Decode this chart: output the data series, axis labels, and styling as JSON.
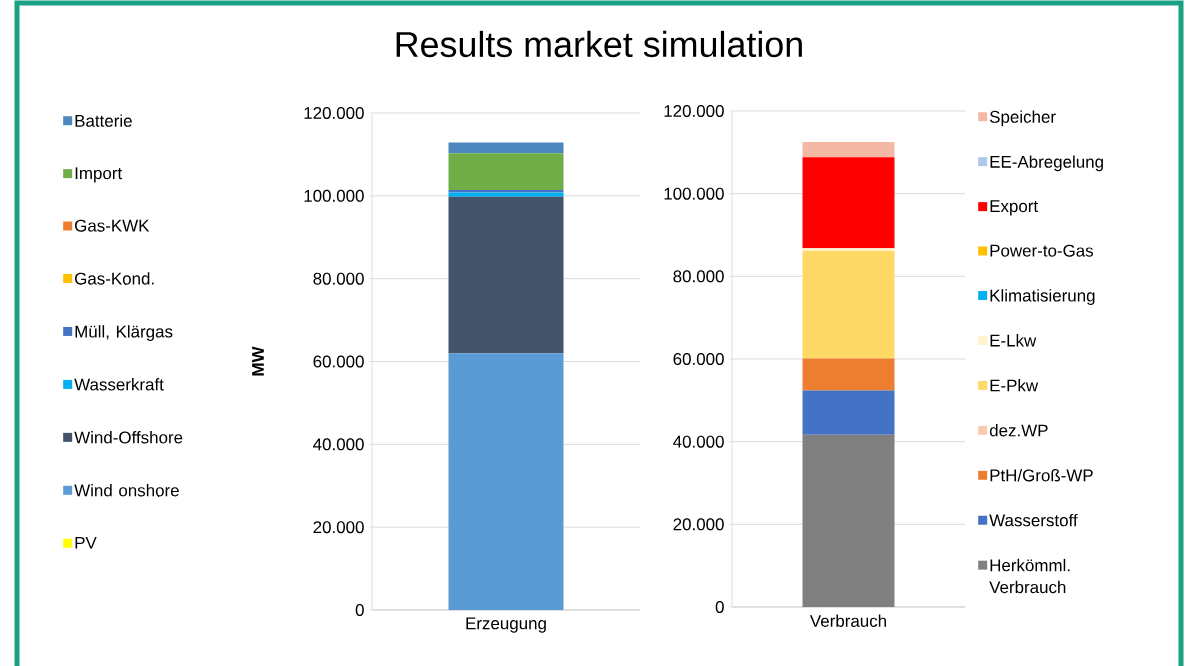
{
  "chart_data": [
    {
      "type": "bar",
      "stacked": true,
      "title": "Results market simulation",
      "ylabel": "MW",
      "categories": [
        "Erzeugung"
      ],
      "series": [
        {
          "name": "PV",
          "color": "#ffff00",
          "values": [
            0
          ]
        },
        {
          "name": "Wind onshore",
          "color": "#5b9bd5",
          "values": [
            62000
          ]
        },
        {
          "name": "Wind-Offshore",
          "color": "#44546a",
          "values": [
            37800
          ]
        },
        {
          "name": "Wasserkraft",
          "color": "#00b0f0",
          "values": [
            1000
          ]
        },
        {
          "name": "Müll, Klärgas",
          "color": "#4472c4",
          "values": [
            600
          ]
        },
        {
          "name": "Gas-Kond.",
          "color": "#ffc000",
          "values": [
            0
          ]
        },
        {
          "name": "Gas-KWK",
          "color": "#ed7d31",
          "values": [
            0
          ]
        },
        {
          "name": "Import",
          "color": "#70ad47",
          "values": [
            8900
          ]
        },
        {
          "name": "Batterie",
          "color": "#4e86be",
          "values": [
            2600
          ]
        }
      ],
      "ylim": [
        0,
        120000
      ],
      "yticks": [
        0,
        {
          "value": 20000,
          "label": "20.000"
        },
        {
          "value": 40000,
          "label": "40.000"
        },
        {
          "value": 60000,
          "label": "60.000"
        },
        {
          "value": 80000,
          "label": "80.000"
        },
        {
          "value": 100000,
          "label": "100.000"
        },
        {
          "value": 120000,
          "label": "120.000"
        }
      ],
      "grid": "y",
      "legend": "left"
    },
    {
      "type": "bar",
      "stacked": true,
      "categories": [
        "Verbrauch"
      ],
      "series": [
        {
          "name": "Herkömml. Verbrauch",
          "color": "#808080",
          "values": [
            41700
          ]
        },
        {
          "name": "Wasserstoff",
          "color": "#4472c4",
          "values": [
            10700
          ]
        },
        {
          "name": "PtH/Groß-WP",
          "color": "#ed7d31",
          "values": [
            7700
          ]
        },
        {
          "name": "dez.WP",
          "color": "#f8cbad",
          "values": [
            0
          ]
        },
        {
          "name": "E-Pkw",
          "color": "#ffd966",
          "values": [
            26000
          ]
        },
        {
          "name": "E-Lkw",
          "color": "#fff2cc",
          "values": [
            700
          ]
        },
        {
          "name": "Klimatisierung",
          "color": "#00b0f0",
          "values": [
            0
          ]
        },
        {
          "name": "Power-to-Gas",
          "color": "#ffc000",
          "values": [
            0
          ]
        },
        {
          "name": "Export",
          "color": "#ff0000",
          "values": [
            22000
          ]
        },
        {
          "name": "EE-Abregelung",
          "color": "#adc8e8",
          "values": [
            0
          ]
        },
        {
          "name": "Speicher",
          "color": "#f4b9a5",
          "values": [
            3700
          ]
        }
      ],
      "ylim": [
        0,
        120000
      ],
      "yticks": [
        0,
        {
          "value": 20000,
          "label": "20.000"
        },
        {
          "value": 40000,
          "label": "40.000"
        },
        {
          "value": 60000,
          "label": "60.000"
        },
        {
          "value": 80000,
          "label": "80.000"
        },
        {
          "value": 100000,
          "label": "100.000"
        },
        {
          "value": 120000,
          "label": "120.000"
        }
      ],
      "grid": "y",
      "legend": "right"
    }
  ]
}
